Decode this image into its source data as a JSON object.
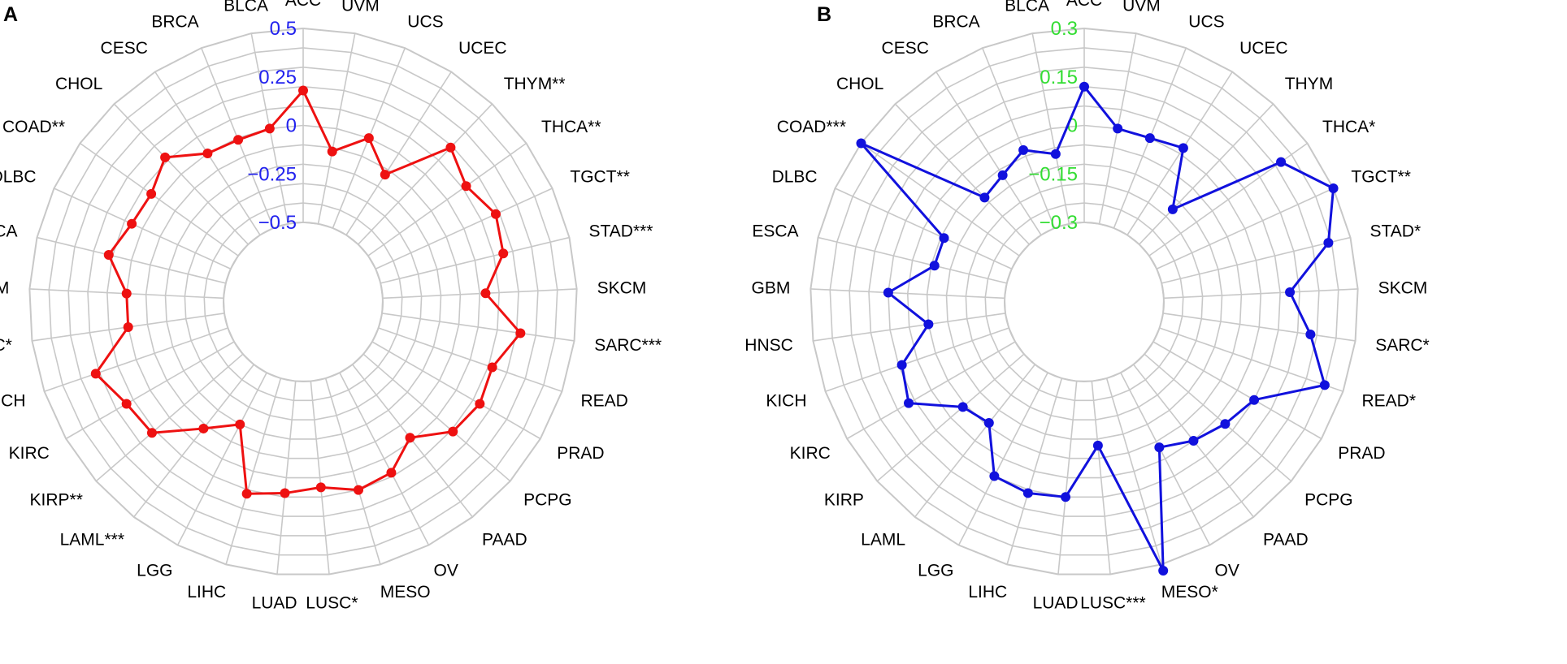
{
  "chart_data": [
    {
      "type": "radar",
      "panel_label": "A",
      "categories": [
        "ACC",
        "UVM",
        "UCS",
        "UCEC",
        "THYM**",
        "THCA**",
        "TGCT**",
        "STAD***",
        "SKCM",
        "SARC***",
        "READ",
        "PRAD",
        "PCPG",
        "PAAD",
        "OV",
        "MESO",
        "LUSC*",
        "LUAD",
        "LIHC",
        "LGG",
        "LAML***",
        "KIRP**",
        "KIRC",
        "KICH",
        "HNSC*",
        "GBM",
        "ESCA",
        "DLBC",
        "COAD**",
        "CHOL",
        "CESC",
        "BRCA",
        "BLCA"
      ],
      "values": [
        0.18,
        -0.12,
        0.0,
        -0.13,
        0.19,
        0.12,
        0.18,
        0.15,
        0.03,
        0.22,
        0.12,
        0.14,
        0.11,
        -0.02,
        0.08,
        0.1,
        0.05,
        0.08,
        0.12,
        -0.2,
        -0.08,
        0.12,
        0.14,
        0.22,
        0.0,
        0.0,
        0.12,
        0.06,
        0.05,
        0.12,
        0.0,
        -0.01,
        0.0
      ],
      "rlim": [
        -0.5,
        0.5
      ],
      "ticks": [
        0.5,
        0.25,
        0,
        -0.25,
        -0.5
      ],
      "tick_labels": [
        "0.5",
        "0.25",
        "0",
        "−0.25",
        "−0.5"
      ],
      "series_color": "#ee1111",
      "tick_color": "#2222ee",
      "grid_color": "#c8c8c8"
    },
    {
      "type": "radar",
      "panel_label": "B",
      "categories": [
        "ACC",
        "UVM",
        "UCS",
        "UCEC",
        "THYM",
        "THCA*",
        "TGCT**",
        "STAD*",
        "SKCM",
        "SARC*",
        "READ*",
        "PRAD",
        "PCPG",
        "PAAD",
        "OV",
        "MESO*",
        "LUSC***",
        "LUAD",
        "LIHC",
        "LGG",
        "LAML",
        "KIRP",
        "KIRC",
        "KICH",
        "HNSC",
        "GBM",
        "ESCA",
        "DLBC",
        "COAD***",
        "CHOL",
        "CESC",
        "BRCA",
        "BLCA"
      ],
      "values": [
        0.12,
        0.0,
        0.0,
        0.02,
        -0.15,
        0.2,
        0.3,
        0.23,
        0.09,
        0.16,
        0.24,
        0.06,
        0.03,
        0.0,
        -0.04,
        0.32,
        -0.1,
        0.06,
        0.07,
        0.06,
        -0.07,
        -0.05,
        0.08,
        0.05,
        -0.06,
        0.06,
        -0.07,
        -0.07,
        0.3,
        -0.1,
        -0.08,
        -0.04,
        -0.08
      ],
      "rlim": [
        -0.3,
        0.3
      ],
      "ticks": [
        0.3,
        0.15,
        0,
        -0.15,
        -0.3
      ],
      "tick_labels": [
        "0.3",
        "0.15",
        "0",
        "−0.15",
        "−0.3"
      ],
      "series_color": "#1111dd",
      "tick_color": "#33dd33",
      "grid_color": "#c8c8c8"
    }
  ]
}
